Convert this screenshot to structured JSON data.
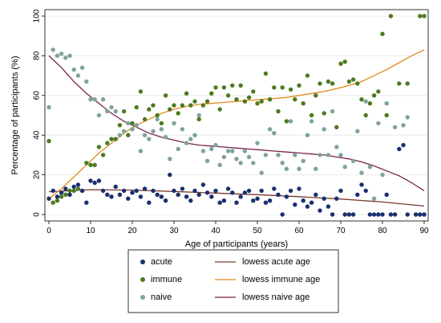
{
  "chart_data": {
    "type": "scatter",
    "title": "",
    "xlabel": "Age of participants (years)",
    "ylabel": "Percentage of participants (%)",
    "xlim": [
      0,
      90
    ],
    "ylim": [
      0,
      100
    ],
    "x_ticks": [
      0,
      10,
      20,
      30,
      40,
      50,
      60,
      70,
      80,
      90
    ],
    "y_ticks": [
      0,
      20,
      40,
      60,
      80,
      100
    ],
    "grid": true,
    "legend_position": "bottom",
    "legend": [
      {
        "label": "acute",
        "kind": "marker",
        "series": "acute"
      },
      {
        "label": "lowess acute age",
        "kind": "line",
        "series": "lowess_acute"
      },
      {
        "label": "immune",
        "kind": "marker",
        "series": "immune"
      },
      {
        "label": "lowess immune age",
        "kind": "line",
        "series": "lowess_immune"
      },
      {
        "label": "naive",
        "kind": "marker",
        "series": "naive"
      },
      {
        "label": "lowess naive age",
        "kind": "line",
        "series": "lowess_naive"
      }
    ],
    "colors": {
      "acute": "#1a2f6e",
      "immune": "#4d7a1f",
      "naive": "#7fa39a",
      "lowess_acute": "#7a3b2e",
      "lowess_immune": "#e08a1a",
      "lowess_naive": "#7a2250"
    },
    "series": {
      "acute": {
        "x": [
          0,
          1,
          2,
          3,
          4,
          5,
          6,
          7,
          8,
          9,
          10,
          11,
          12,
          13,
          14,
          15,
          16,
          17,
          18,
          19,
          20,
          21,
          22,
          23,
          24,
          25,
          26,
          27,
          28,
          29,
          30,
          31,
          32,
          33,
          34,
          35,
          36,
          37,
          38,
          39,
          40,
          41,
          42,
          43,
          44,
          45,
          46,
          47,
          48,
          49,
          50,
          51,
          52,
          53,
          54,
          55,
          56,
          57,
          58,
          59,
          60,
          61,
          62,
          63,
          64,
          65,
          66,
          67,
          68,
          69,
          70,
          71,
          72,
          73,
          74,
          75,
          76,
          77,
          78,
          79,
          80,
          81,
          82,
          83,
          84,
          85,
          86,
          88,
          89,
          90
        ],
        "y": [
          8,
          12,
          9,
          11,
          13,
          10,
          14,
          15,
          12,
          6,
          17,
          16,
          17,
          12,
          10,
          9,
          14,
          10,
          12,
          8,
          11,
          12,
          9,
          13,
          6,
          12,
          10,
          9,
          7,
          20,
          12,
          10,
          13,
          9,
          7,
          12,
          10,
          15,
          11,
          9,
          12,
          6,
          7,
          13,
          11,
          6,
          9,
          11,
          12,
          7,
          8,
          12,
          6,
          7,
          13,
          10,
          0,
          9,
          12,
          5,
          13,
          7,
          4,
          6,
          10,
          2,
          8,
          4,
          0,
          8,
          12,
          0,
          0,
          0,
          10,
          15,
          12,
          0,
          0,
          0,
          0,
          10,
          0,
          0,
          33,
          35,
          0,
          0,
          0,
          0
        ]
      },
      "immune": {
        "x": [
          0,
          1,
          2,
          3,
          4,
          5,
          6,
          7,
          8,
          9,
          10,
          11,
          12,
          13,
          14,
          15,
          16,
          17,
          18,
          19,
          20,
          21,
          22,
          23,
          24,
          25,
          26,
          27,
          28,
          29,
          30,
          31,
          32,
          33,
          34,
          35,
          36,
          37,
          38,
          39,
          40,
          41,
          42,
          43,
          44,
          45,
          46,
          47,
          48,
          49,
          50,
          51,
          52,
          53,
          54,
          55,
          56,
          57,
          58,
          59,
          60,
          61,
          62,
          63,
          64,
          65,
          66,
          67,
          68,
          69,
          70,
          71,
          72,
          73,
          74,
          75,
          76,
          77,
          78,
          79,
          80,
          81,
          82,
          84,
          86,
          89,
          90
        ],
        "y": [
          37,
          6,
          7,
          9,
          10,
          12,
          12,
          13,
          12,
          26,
          25,
          25,
          34,
          30,
          36,
          38,
          38,
          45,
          52,
          40,
          46,
          54,
          62,
          48,
          53,
          55,
          50,
          46,
          60,
          53,
          55,
          51,
          55,
          61,
          55,
          57,
          48,
          55,
          57,
          61,
          64,
          53,
          64,
          60,
          65,
          58,
          65,
          57,
          59,
          62,
          56,
          57,
          71,
          58,
          64,
          52,
          64,
          47,
          63,
          58,
          65,
          56,
          70,
          50,
          60,
          66,
          51,
          67,
          66,
          44,
          76,
          77,
          67,
          68,
          66,
          58,
          50,
          56,
          60,
          62,
          91,
          50,
          100,
          66,
          66,
          100,
          100
        ]
      },
      "naive": {
        "x": [
          0,
          1,
          2,
          3,
          4,
          5,
          6,
          7,
          8,
          9,
          10,
          11,
          12,
          13,
          14,
          15,
          16,
          17,
          18,
          19,
          20,
          21,
          22,
          23,
          24,
          25,
          26,
          27,
          28,
          29,
          30,
          31,
          32,
          33,
          34,
          35,
          36,
          37,
          38,
          39,
          40,
          41,
          42,
          43,
          44,
          45,
          46,
          47,
          48,
          49,
          50,
          51,
          52,
          53,
          54,
          55,
          56,
          57,
          58,
          59,
          60,
          61,
          62,
          63,
          64,
          65,
          66,
          67,
          68,
          69,
          70,
          71,
          72,
          73,
          74,
          75,
          76,
          77,
          78,
          79,
          80,
          81,
          83,
          85,
          86,
          88,
          89,
          90
        ],
        "y": [
          54,
          83,
          80,
          81,
          79,
          80,
          73,
          70,
          74,
          67,
          58,
          58,
          50,
          58,
          52,
          54,
          52,
          40,
          42,
          46,
          43,
          45,
          32,
          40,
          38,
          42,
          48,
          43,
          39,
          28,
          46,
          33,
          43,
          36,
          38,
          40,
          50,
          32,
          27,
          33,
          35,
          25,
          29,
          32,
          32,
          28,
          26,
          32,
          29,
          26,
          36,
          21,
          30,
          43,
          41,
          30,
          26,
          23,
          47,
          30,
          23,
          27,
          40,
          47,
          23,
          30,
          43,
          30,
          52,
          34,
          30,
          24,
          0,
          27,
          42,
          21,
          57,
          24,
          8,
          46,
          20,
          56,
          44,
          45,
          49,
          0,
          0,
          0
        ]
      },
      "lowess_acute": {
        "x": [
          0,
          10,
          20,
          30,
          40,
          50,
          60,
          70,
          80,
          90
        ],
        "y": [
          11.5,
          12.5,
          12.3,
          11.6,
          10.8,
          10.0,
          9.0,
          7.8,
          6.3,
          4.3
        ]
      },
      "lowess_immune": {
        "x": [
          0,
          3,
          6,
          9,
          12,
          15,
          18,
          21,
          24,
          27,
          30,
          33,
          36,
          39,
          42,
          45,
          48,
          51,
          54,
          57,
          60,
          63,
          66,
          69,
          72,
          75,
          78,
          81,
          84,
          87,
          90
        ],
        "y": [
          8,
          13,
          19,
          25,
          31,
          36,
          41,
          45,
          48,
          51,
          53,
          54.5,
          55.5,
          56,
          56.5,
          57,
          57.5,
          58,
          58.5,
          59,
          60,
          61,
          62,
          63.5,
          65,
          67,
          70,
          73,
          76.5,
          80,
          83
        ]
      },
      "lowess_naive": {
        "x": [
          0,
          3,
          6,
          9,
          12,
          15,
          18,
          21,
          24,
          27,
          30,
          33,
          36,
          39,
          42,
          45,
          48,
          51,
          54,
          57,
          60,
          63,
          66,
          69,
          72,
          75,
          78,
          81,
          84,
          87,
          90
        ],
        "y": [
          80,
          74,
          67,
          61,
          56,
          51,
          47,
          44,
          41,
          39,
          37.5,
          36,
          35,
          34.5,
          34,
          33.5,
          33,
          32.5,
          32,
          31.5,
          31,
          30.5,
          30,
          29,
          28,
          26.5,
          24.5,
          22,
          19.5,
          16,
          12
        ]
      }
    }
  }
}
